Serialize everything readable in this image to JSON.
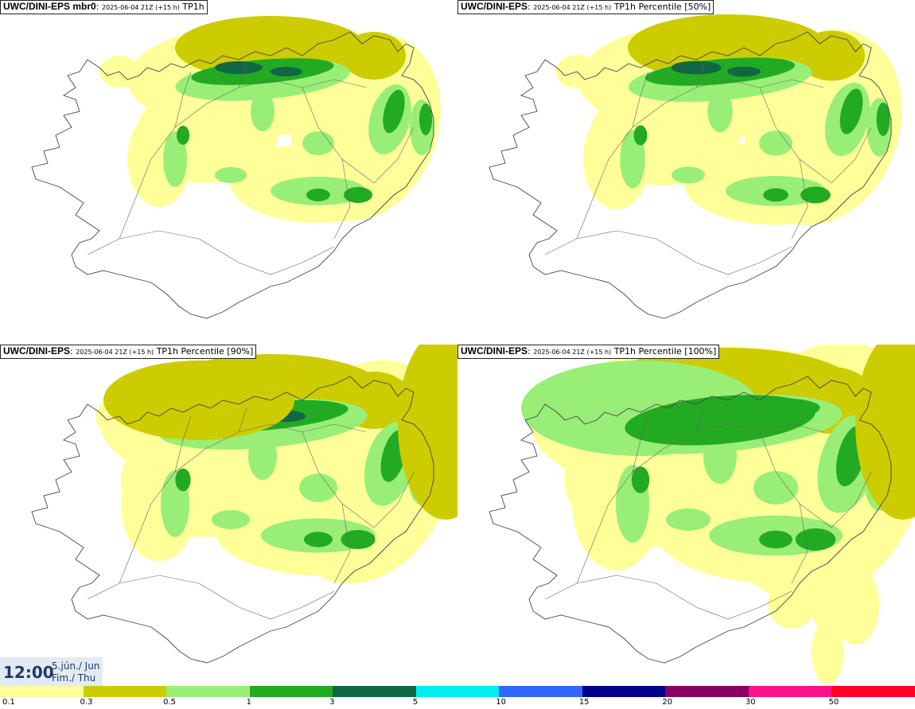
{
  "panels": [
    {
      "model": "UWC/DINI-EPS mbr0",
      "run": "2025-06-04 21Z (+15 h)",
      "field": "TP1h"
    },
    {
      "model": "UWC/DINI-EPS",
      "run": "2025-06-04 21Z (+15 h)",
      "field": "TP1h Percentile [50%]"
    },
    {
      "model": "UWC/DINI-EPS",
      "run": "2025-06-04 21Z (+15 h)",
      "field": "TP1h Percentile [90%]"
    },
    {
      "model": "UWC/DINI-EPS",
      "run": "2025-06-04 21Z (+15 h)",
      "field": "TP1h Percentile [100%]"
    }
  ],
  "valid_time": {
    "time": "12:00",
    "date_is": "5.jún./ Jun",
    "day_is": "Fim./ Thu"
  },
  "legend": {
    "colors": [
      "#ffff99",
      "#cccc00",
      "#99ee77",
      "#22aa22",
      "#116644",
      "#00eeee",
      "#3366ff",
      "#000088",
      "#880066",
      "#ff1188",
      "#ff0022"
    ],
    "labels": [
      "0.1",
      "0.3",
      "0.5",
      "1",
      "3",
      "5",
      "10",
      "15",
      "20",
      "30",
      "50"
    ]
  }
}
